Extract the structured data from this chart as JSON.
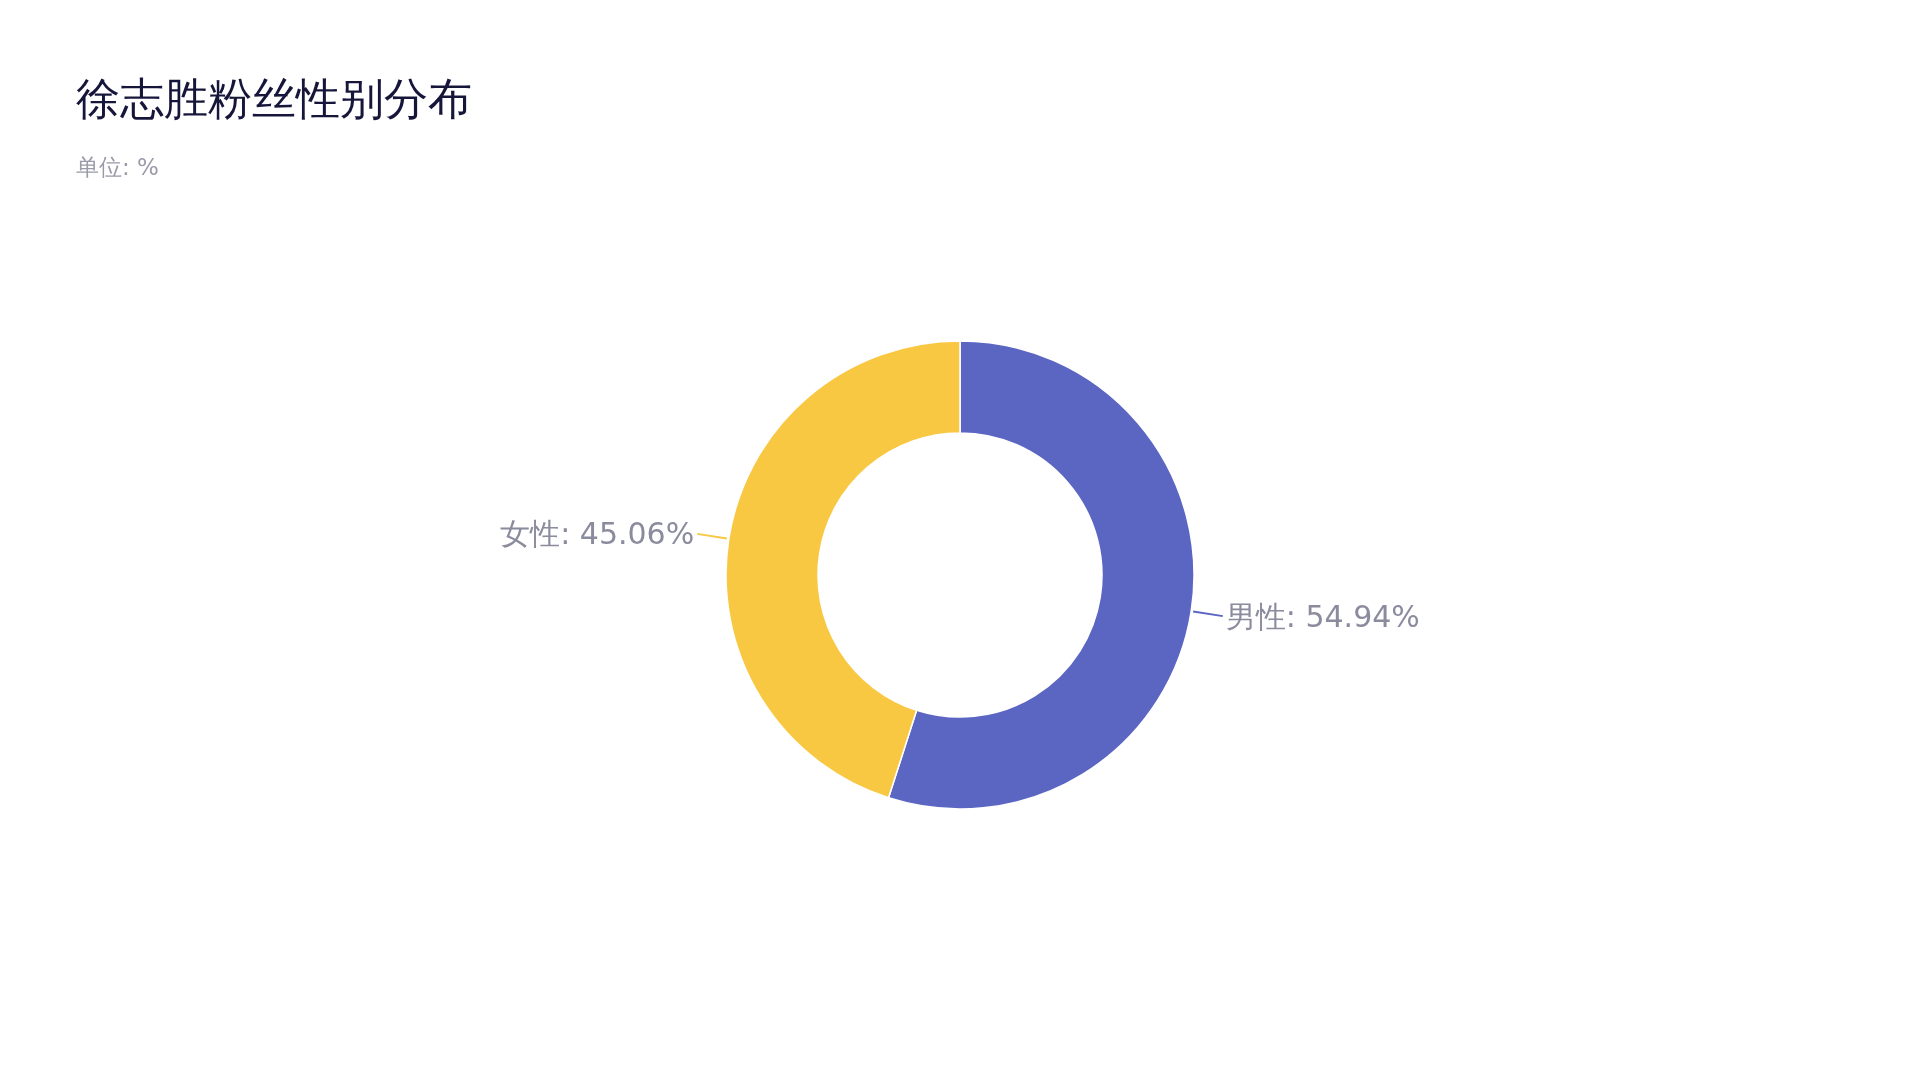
{
  "chart_data": {
    "type": "donut",
    "title": "徐志胜粉丝性别分布",
    "subtitle": "单位: %",
    "categories": [
      "男性",
      "女性"
    ],
    "values": [
      54.94,
      45.06
    ],
    "colors": [
      "#5b65c2",
      "#f9c843"
    ],
    "value_labels": [
      "54.94%",
      "45.06%"
    ],
    "legend": false
  }
}
